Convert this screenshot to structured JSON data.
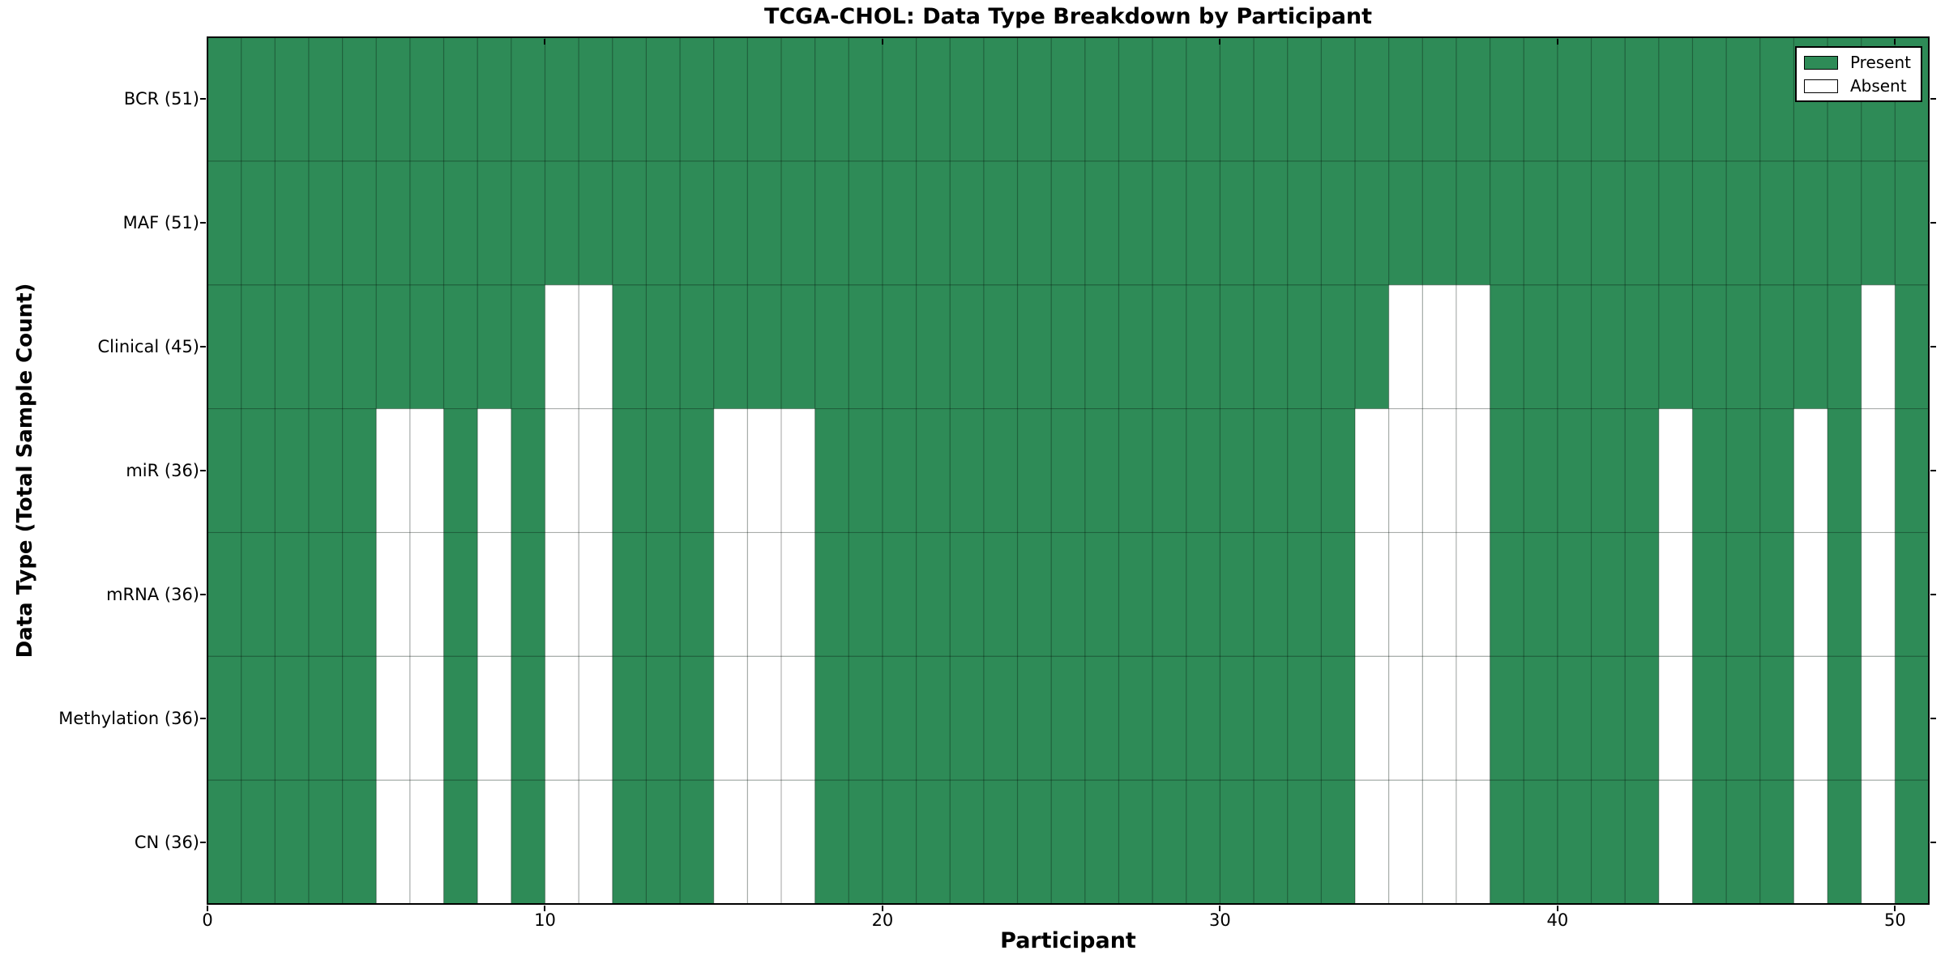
{
  "chart_data": {
    "type": "heatmap",
    "title": "TCGA-CHOL: Data Type Breakdown by Participant",
    "xlabel": "Participant",
    "ylabel": "Data Type (Total Sample Count)",
    "n_participants": 51,
    "x_axis": {
      "min": 0,
      "max": 51,
      "tick_values": [
        0,
        10,
        20,
        30,
        40,
        50
      ],
      "tick_labels": [
        "0",
        "10",
        "20",
        "30",
        "40",
        "50"
      ]
    },
    "rows": [
      {
        "label": "BCR (51)",
        "total_samples": 51,
        "absent_participants": []
      },
      {
        "label": "MAF (51)",
        "total_samples": 51,
        "absent_participants": []
      },
      {
        "label": "Clinical (45)",
        "total_samples": 45,
        "absent_participants": [
          10,
          11,
          35,
          36,
          37,
          49
        ]
      },
      {
        "label": "miR (36)",
        "total_samples": 36,
        "absent_participants": [
          5,
          6,
          8,
          10,
          11,
          15,
          16,
          17,
          34,
          35,
          36,
          37,
          43,
          47,
          49
        ]
      },
      {
        "label": "mRNA (36)",
        "total_samples": 36,
        "absent_participants": [
          5,
          6,
          8,
          10,
          11,
          15,
          16,
          17,
          34,
          35,
          36,
          37,
          43,
          47,
          49
        ]
      },
      {
        "label": "Methylation (36)",
        "total_samples": 36,
        "absent_participants": [
          5,
          6,
          8,
          10,
          11,
          15,
          16,
          17,
          34,
          35,
          36,
          37,
          43,
          47,
          49
        ]
      },
      {
        "label": "CN (36)",
        "total_samples": 36,
        "absent_participants": [
          5,
          6,
          8,
          10,
          11,
          15,
          16,
          17,
          34,
          35,
          36,
          37,
          43,
          47,
          49
        ]
      }
    ],
    "legend": [
      {
        "label": "Present",
        "color": "#2e8b57"
      },
      {
        "label": "Absent",
        "color": "#ffffff"
      }
    ],
    "colors": {
      "present": "#2e8b57",
      "absent": "#ffffff",
      "grid": "rgba(0,0,0,0.30)",
      "spine": "#000000",
      "background": "#ffffff",
      "text": "#000000"
    },
    "layout": {
      "grid_on": true,
      "legend_position": "upper right"
    }
  }
}
